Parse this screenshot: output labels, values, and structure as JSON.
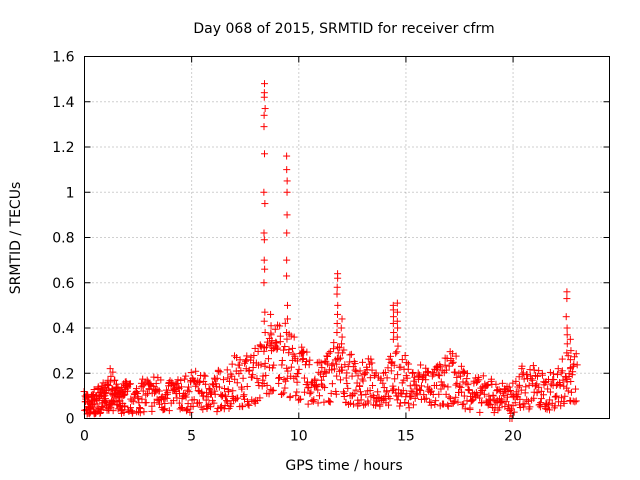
{
  "chart_data": {
    "type": "scatter",
    "title": "Day 068 of 2015, SRMTID for receiver cfrm",
    "xlabel": "GPS time / hours",
    "ylabel": "SRMTID / TECUs",
    "xlim": [
      0,
      24.5
    ],
    "ylim": [
      0,
      1.6
    ],
    "xticks": [
      0,
      5,
      10,
      15,
      20
    ],
    "yticks": [
      0,
      0.2,
      0.4,
      0.6,
      0.8,
      1.0,
      1.2,
      1.4,
      1.6
    ],
    "xtick_labels": [
      "0",
      "5",
      "10",
      "15",
      "20"
    ],
    "ytick_labels": [
      "0",
      "0.2",
      "0.4",
      "0.6",
      "0.8",
      "1",
      "1.2",
      "1.4",
      "1.6"
    ],
    "grid": true,
    "marker": "plus",
    "color": "#ff0000",
    "background_series": {
      "name": "SRMTID",
      "x": [
        0.0,
        0.1,
        0.2,
        0.3,
        0.4,
        0.5,
        0.6,
        0.7,
        0.8,
        0.9,
        1.0,
        1.1,
        1.2,
        1.3,
        1.4,
        1.5,
        1.6,
        1.7,
        1.8,
        1.9,
        2.0,
        2.2,
        2.4,
        2.6,
        2.8,
        3.0,
        3.2,
        3.4,
        3.6,
        3.8,
        4.0,
        4.2,
        4.4,
        4.6,
        4.8,
        5.0,
        5.2,
        5.4,
        5.6,
        5.8,
        6.0,
        6.2,
        6.4,
        6.6,
        6.8,
        7.0,
        7.2,
        7.4,
        7.6,
        7.8,
        8.0,
        8.2,
        8.4,
        8.6,
        8.8,
        9.0,
        9.2,
        9.4,
        9.6,
        9.8,
        10.0,
        10.2,
        10.4,
        10.6,
        10.8,
        11.0,
        11.2,
        11.4,
        11.6,
        11.8,
        12.0,
        12.2,
        12.4,
        12.6,
        12.8,
        13.0,
        13.2,
        13.4,
        13.6,
        13.8,
        14.0,
        14.2,
        14.4,
        14.6,
        14.8,
        15.0,
        15.2,
        15.4,
        15.6,
        15.8,
        16.0,
        16.2,
        16.4,
        16.6,
        16.8,
        17.0,
        17.2,
        17.4,
        17.6,
        17.8,
        18.0,
        18.2,
        18.4,
        18.6,
        18.8,
        19.0,
        19.2,
        19.4,
        19.6,
        19.8,
        20.0,
        20.2,
        20.4,
        20.6,
        20.8,
        21.0,
        21.2,
        21.4,
        21.6,
        21.8,
        22.0,
        22.2,
        22.4,
        22.6,
        22.8
      ],
      "y": [
        0.07,
        0.06,
        0.05,
        0.06,
        0.07,
        0.06,
        0.08,
        0.07,
        0.09,
        0.08,
        0.1,
        0.11,
        0.13,
        0.12,
        0.1,
        0.08,
        0.07,
        0.08,
        0.09,
        0.1,
        0.09,
        0.08,
        0.09,
        0.1,
        0.11,
        0.1,
        0.12,
        0.11,
        0.1,
        0.09,
        0.11,
        0.1,
        0.12,
        0.11,
        0.1,
        0.12,
        0.13,
        0.11,
        0.12,
        0.1,
        0.11,
        0.13,
        0.12,
        0.14,
        0.15,
        0.17,
        0.16,
        0.18,
        0.17,
        0.19,
        0.2,
        0.21,
        0.22,
        0.24,
        0.26,
        0.28,
        0.27,
        0.25,
        0.23,
        0.21,
        0.2,
        0.18,
        0.17,
        0.16,
        0.15,
        0.17,
        0.18,
        0.2,
        0.22,
        0.21,
        0.19,
        0.18,
        0.17,
        0.16,
        0.15,
        0.14,
        0.16,
        0.15,
        0.14,
        0.15,
        0.16,
        0.17,
        0.18,
        0.16,
        0.17,
        0.15,
        0.14,
        0.13,
        0.15,
        0.16,
        0.14,
        0.13,
        0.15,
        0.14,
        0.16,
        0.18,
        0.17,
        0.15,
        0.14,
        0.13,
        0.12,
        0.11,
        0.1,
        0.11,
        0.12,
        0.1,
        0.09,
        0.1,
        0.08,
        0.09,
        0.1,
        0.12,
        0.14,
        0.13,
        0.15,
        0.13,
        0.12,
        0.11,
        0.12,
        0.13,
        0.14,
        0.16,
        0.17,
        0.18,
        0.19
      ]
    },
    "spikes": [
      {
        "x": 8.4,
        "values": [
          1.48,
          1.44,
          1.42,
          1.37,
          1.34,
          1.29,
          1.17,
          1.0,
          0.95,
          0.82,
          0.79,
          0.7,
          0.66,
          0.6,
          0.47,
          0.43,
          0.38
        ]
      },
      {
        "x": 8.7,
        "values": [
          0.46,
          0.41,
          0.37,
          0.33,
          0.3
        ]
      },
      {
        "x": 9.45,
        "values": [
          1.16,
          1.1,
          1.05,
          1.0,
          0.9,
          0.82,
          0.7,
          0.63,
          0.5,
          0.44,
          0.38
        ]
      },
      {
        "x": 11.8,
        "values": [
          0.64,
          0.62,
          0.58,
          0.55,
          0.5,
          0.46,
          0.42,
          0.38
        ]
      },
      {
        "x": 12.0,
        "values": [
          0.44,
          0.4,
          0.36,
          0.33
        ]
      },
      {
        "x": 14.4,
        "values": [
          0.5,
          0.48,
          0.45,
          0.42,
          0.38,
          0.35
        ]
      },
      {
        "x": 14.6,
        "values": [
          0.51,
          0.47,
          0.43,
          0.4,
          0.36,
          0.32
        ]
      },
      {
        "x": 22.5,
        "values": [
          0.56,
          0.53,
          0.45,
          0.4,
          0.37,
          0.33,
          0.29
        ]
      },
      {
        "x": 22.7,
        "values": [
          0.35,
          0.3,
          0.26,
          0.22
        ]
      }
    ],
    "zero_points": {
      "x": [
        19.85,
        19.95
      ],
      "y": [
        0.0,
        0.0
      ]
    }
  }
}
